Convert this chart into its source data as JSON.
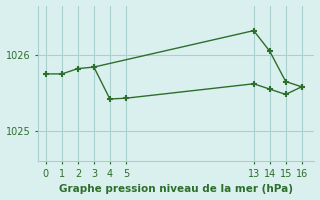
{
  "line1_x": [
    0,
    1,
    2,
    3,
    13,
    14,
    15,
    16
  ],
  "line1_y": [
    1025.75,
    1025.75,
    1025.82,
    1025.84,
    1026.32,
    1026.05,
    1025.65,
    1025.58
  ],
  "line2_x": [
    3,
    4,
    5,
    13,
    14,
    15,
    16
  ],
  "line2_y": [
    1025.84,
    1025.42,
    1025.43,
    1025.62,
    1025.55,
    1025.48,
    1025.58
  ],
  "line_color": "#2d6e2d",
  "marker": "+",
  "markersize": 5,
  "markeredgewidth": 1.5,
  "linewidth": 1.0,
  "bg_color": "#daf0ee",
  "grid_color": "#aacfcf",
  "xlabel": "Graphe pression niveau de la mer (hPa)",
  "xticks": [
    0,
    1,
    2,
    3,
    4,
    5,
    13,
    14,
    15,
    16
  ],
  "yticks": [
    1025,
    1026
  ],
  "xlim": [
    -0.5,
    16.8
  ],
  "ylim": [
    1024.6,
    1026.65
  ],
  "xlabel_fontsize": 7.5,
  "tick_fontsize": 7
}
